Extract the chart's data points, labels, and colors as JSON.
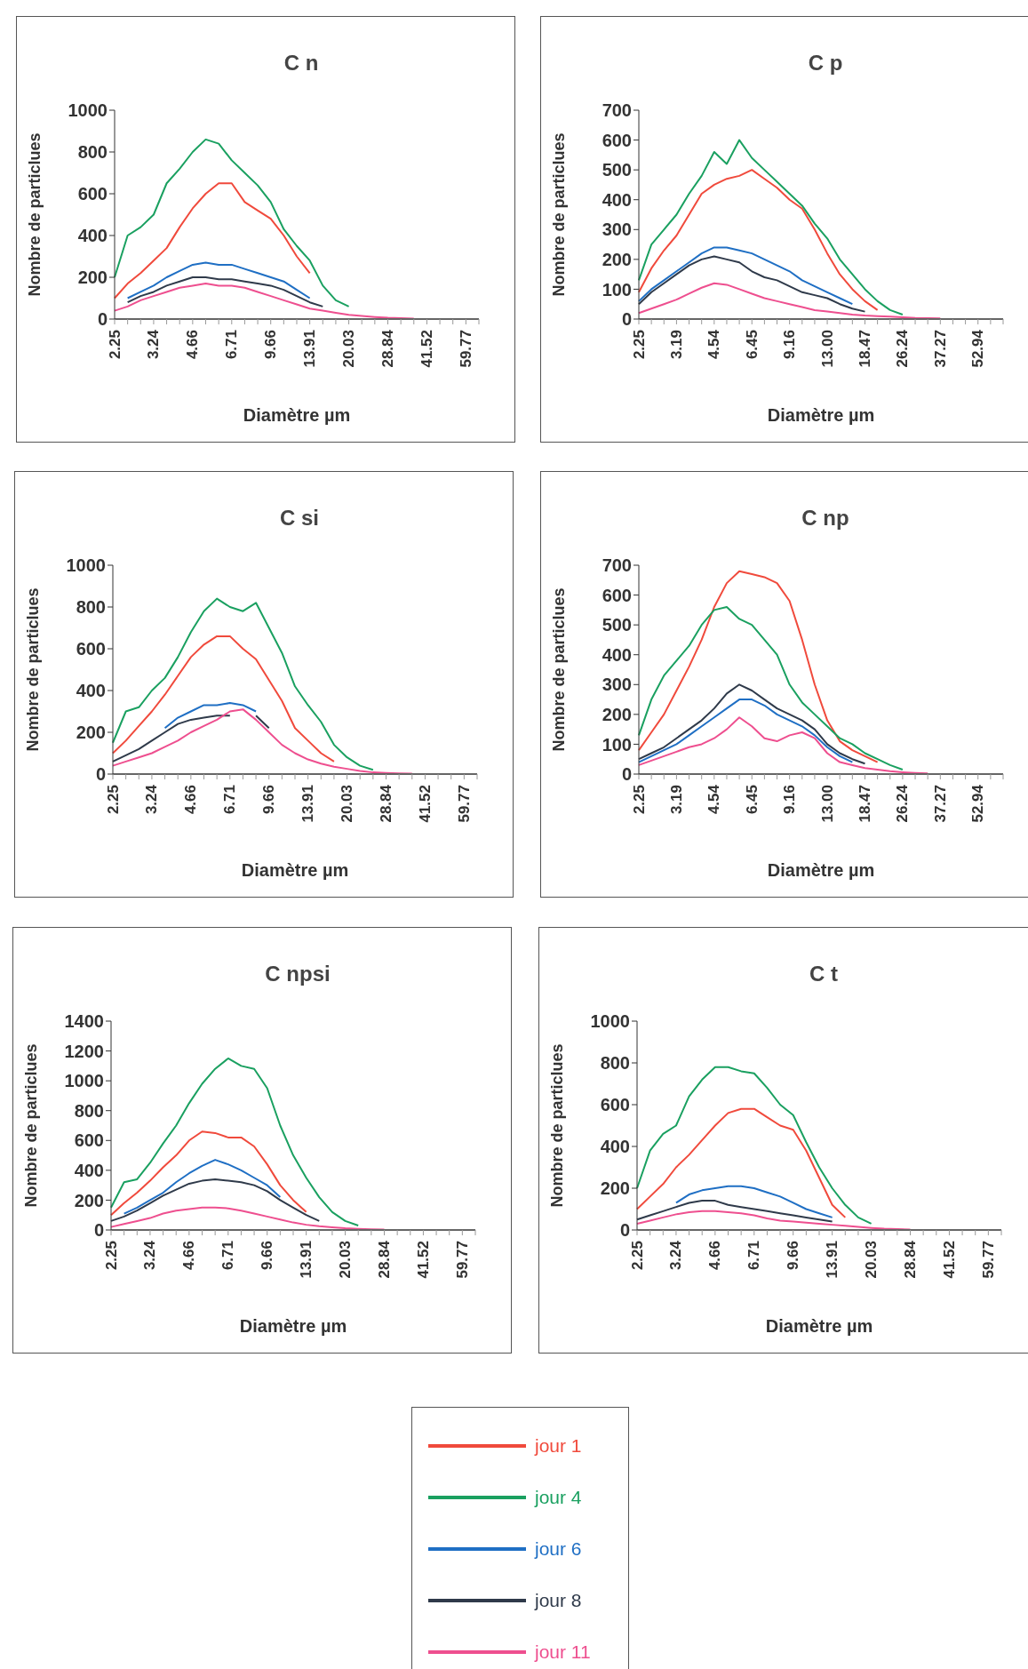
{
  "chart_data": [
    {
      "type": "line",
      "title": "C n",
      "xlabel": "Diamètre  µm",
      "ylabel": "Nombre de particlues",
      "ylim": [
        0,
        1000
      ],
      "yticks": [
        0,
        200,
        400,
        600,
        800,
        1000
      ],
      "categories": [
        "2.25",
        null,
        null,
        "3.24",
        null,
        null,
        "4.66",
        null,
        null,
        "6.71",
        null,
        null,
        "9.66",
        null,
        null,
        "13.91",
        null,
        null,
        "20.03",
        null,
        null,
        "28.84",
        null,
        null,
        "41.52",
        null,
        null,
        "59.77",
        null
      ],
      "series": [
        {
          "color": "#f04a3c",
          "values": [
            100,
            170,
            220,
            280,
            340,
            440,
            530,
            600,
            650,
            650,
            560,
            520,
            480,
            400,
            300,
            220,
            null,
            null,
            null,
            null,
            null,
            null,
            null,
            null,
            null,
            null,
            null,
            null,
            null
          ]
        },
        {
          "color": "#1aa060",
          "values": [
            200,
            400,
            440,
            500,
            650,
            720,
            800,
            860,
            840,
            760,
            700,
            640,
            560,
            430,
            350,
            280,
            160,
            90,
            60,
            null,
            null,
            null,
            null,
            null,
            null,
            null,
            null,
            null,
            null
          ]
        },
        {
          "color": "#1f6fc4",
          "values": [
            null,
            100,
            130,
            160,
            200,
            230,
            260,
            270,
            260,
            260,
            240,
            220,
            200,
            180,
            140,
            100,
            null,
            null,
            null,
            null,
            null,
            null,
            null,
            null,
            null,
            null,
            null,
            null,
            null
          ]
        },
        {
          "color": "#2f3a4a",
          "values": [
            null,
            80,
            110,
            130,
            160,
            180,
            200,
            200,
            190,
            190,
            180,
            170,
            160,
            140,
            110,
            80,
            60,
            null,
            null,
            null,
            null,
            null,
            null,
            null,
            null,
            null,
            null,
            null,
            null
          ]
        },
        {
          "color": "#ee4f8f",
          "values": [
            40,
            60,
            90,
            110,
            130,
            150,
            160,
            170,
            160,
            160,
            150,
            130,
            110,
            90,
            70,
            50,
            40,
            30,
            20,
            15,
            10,
            6,
            4,
            2,
            null,
            null,
            null,
            null,
            null
          ]
        }
      ]
    },
    {
      "type": "line",
      "title": "C p",
      "xlabel": "Diamètre  µm",
      "ylabel": "Nombre de particlues",
      "ylim": [
        0,
        700
      ],
      "yticks": [
        0,
        100,
        200,
        300,
        400,
        500,
        600,
        700
      ],
      "categories": [
        "2.25",
        null,
        null,
        "3.19",
        null,
        null,
        "4.54",
        null,
        null,
        "6.45",
        null,
        null,
        "9.16",
        null,
        null,
        "13.00",
        null,
        null,
        "18.47",
        null,
        null,
        "26.24",
        null,
        null,
        "37.27",
        null,
        null,
        "52.94",
        null,
        null
      ],
      "series": [
        {
          "color": "#f04a3c",
          "values": [
            90,
            170,
            230,
            280,
            350,
            420,
            450,
            470,
            480,
            500,
            470,
            440,
            400,
            370,
            300,
            220,
            150,
            100,
            60,
            30,
            null,
            null,
            null,
            null,
            null,
            null,
            null,
            null,
            null,
            null
          ]
        },
        {
          "color": "#1aa060",
          "values": [
            130,
            250,
            300,
            350,
            420,
            480,
            560,
            520,
            600,
            540,
            500,
            460,
            420,
            380,
            320,
            270,
            200,
            150,
            100,
            60,
            30,
            15,
            null,
            null,
            null,
            null,
            null,
            null,
            null,
            null
          ]
        },
        {
          "color": "#1f6fc4",
          "values": [
            60,
            100,
            130,
            160,
            190,
            220,
            240,
            240,
            230,
            220,
            200,
            180,
            160,
            130,
            110,
            90,
            70,
            50,
            null,
            null,
            null,
            null,
            null,
            null,
            null,
            null,
            null,
            null,
            null,
            null
          ]
        },
        {
          "color": "#2f3a4a",
          "values": [
            50,
            90,
            120,
            150,
            180,
            200,
            210,
            200,
            190,
            160,
            140,
            130,
            110,
            90,
            80,
            70,
            50,
            35,
            25,
            null,
            null,
            null,
            null,
            null,
            null,
            null,
            null,
            null,
            null,
            null
          ]
        },
        {
          "color": "#ee4f8f",
          "values": [
            20,
            35,
            50,
            65,
            85,
            105,
            120,
            115,
            100,
            85,
            70,
            60,
            50,
            40,
            30,
            25,
            20,
            15,
            12,
            10,
            8,
            6,
            4,
            3,
            2,
            null,
            null,
            null,
            null,
            null
          ]
        }
      ]
    },
    {
      "type": "line",
      "title": "C si",
      "xlabel": "Diamètre  µm",
      "ylabel": "Nombre de particlues",
      "ylim": [
        0,
        1000
      ],
      "yticks": [
        0,
        200,
        400,
        600,
        800,
        1000
      ],
      "categories": [
        "2.25",
        null,
        null,
        "3.24",
        null,
        null,
        "4.66",
        null,
        null,
        "6.71",
        null,
        null,
        "9.66",
        null,
        null,
        "13.91",
        null,
        null,
        "20.03",
        null,
        null,
        "28.84",
        null,
        null,
        "41.52",
        null,
        null,
        "59.77",
        null
      ],
      "series": [
        {
          "color": "#f04a3c",
          "values": [
            100,
            160,
            230,
            300,
            380,
            470,
            560,
            620,
            660,
            660,
            600,
            550,
            450,
            350,
            220,
            160,
            100,
            60,
            null,
            null,
            null,
            null,
            null,
            null,
            null,
            null,
            null,
            null,
            null
          ]
        },
        {
          "color": "#1aa060",
          "values": [
            150,
            300,
            320,
            400,
            460,
            560,
            680,
            780,
            840,
            800,
            780,
            820,
            700,
            580,
            420,
            330,
            250,
            140,
            80,
            40,
            20,
            null,
            null,
            null,
            null,
            null,
            null,
            null,
            null
          ]
        },
        {
          "color": "#1f6fc4",
          "values": [
            null,
            null,
            null,
            null,
            220,
            270,
            300,
            330,
            330,
            340,
            330,
            300,
            null,
            null,
            null,
            null,
            null,
            null,
            null,
            null,
            null,
            null,
            null,
            null,
            null,
            null,
            null,
            null,
            null
          ]
        },
        {
          "color": "#2f3a4a",
          "values": [
            60,
            90,
            120,
            160,
            200,
            240,
            260,
            270,
            280,
            280,
            null,
            280,
            220,
            null,
            null,
            null,
            null,
            null,
            null,
            null,
            null,
            null,
            null,
            null,
            null,
            null,
            null,
            null,
            null
          ]
        },
        {
          "color": "#ee4f8f",
          "values": [
            40,
            60,
            80,
            100,
            130,
            160,
            200,
            230,
            260,
            300,
            310,
            260,
            200,
            140,
            100,
            70,
            50,
            35,
            25,
            15,
            8,
            5,
            3,
            2,
            null,
            null,
            null,
            null,
            null
          ]
        }
      ]
    },
    {
      "type": "line",
      "title": "C np",
      "xlabel": "Diamètre  µm",
      "ylabel": "Nombre de particlues",
      "ylim": [
        0,
        700
      ],
      "yticks": [
        0,
        100,
        200,
        300,
        400,
        500,
        600,
        700
      ],
      "categories": [
        "2.25",
        null,
        null,
        "3.19",
        null,
        null,
        "4.54",
        null,
        null,
        "6.45",
        null,
        null,
        "9.16",
        null,
        null,
        "13.00",
        null,
        null,
        "18.47",
        null,
        null,
        "26.24",
        null,
        null,
        "37.27",
        null,
        null,
        "52.94",
        null,
        null
      ],
      "series": [
        {
          "color": "#f04a3c",
          "values": [
            80,
            140,
            200,
            280,
            360,
            450,
            560,
            640,
            680,
            670,
            660,
            640,
            580,
            450,
            300,
            180,
            110,
            80,
            60,
            40,
            null,
            null,
            null,
            null,
            null,
            null,
            null,
            null,
            null,
            null
          ]
        },
        {
          "color": "#1aa060",
          "values": [
            130,
            250,
            330,
            380,
            430,
            500,
            550,
            560,
            520,
            500,
            450,
            400,
            300,
            240,
            200,
            160,
            120,
            100,
            70,
            50,
            30,
            15,
            null,
            null,
            null,
            null,
            null,
            null,
            null,
            null
          ]
        },
        {
          "color": "#1f6fc4",
          "values": [
            40,
            60,
            80,
            100,
            130,
            160,
            190,
            220,
            250,
            250,
            230,
            200,
            180,
            160,
            130,
            90,
            60,
            40,
            null,
            null,
            null,
            null,
            null,
            null,
            null,
            null,
            null,
            null,
            null,
            null
          ]
        },
        {
          "color": "#2f3a4a",
          "values": [
            50,
            70,
            90,
            120,
            150,
            180,
            220,
            270,
            300,
            280,
            250,
            220,
            200,
            180,
            150,
            100,
            70,
            50,
            35,
            null,
            null,
            null,
            null,
            null,
            null,
            null,
            null,
            null,
            null,
            null
          ]
        },
        {
          "color": "#ee4f8f",
          "values": [
            30,
            45,
            60,
            75,
            90,
            100,
            120,
            150,
            190,
            160,
            120,
            110,
            130,
            140,
            120,
            70,
            40,
            30,
            20,
            15,
            10,
            6,
            4,
            2,
            null,
            null,
            null,
            null,
            null,
            null
          ]
        }
      ]
    },
    {
      "type": "line",
      "title": "C npsi",
      "xlabel": "Diamètre  µm",
      "ylabel": "Nombre de particlues",
      "ylim": [
        0,
        1400
      ],
      "yticks": [
        0,
        200,
        400,
        600,
        800,
        1000,
        1200,
        1400
      ],
      "categories": [
        "2.25",
        null,
        null,
        "3.24",
        null,
        null,
        "4.66",
        null,
        null,
        "6.71",
        null,
        null,
        "9.66",
        null,
        null,
        "13.91",
        null,
        null,
        "20.03",
        null,
        null,
        "28.84",
        null,
        null,
        "41.52",
        null,
        null,
        "59.77",
        null
      ],
      "series": [
        {
          "color": "#f04a3c",
          "values": [
            100,
            180,
            250,
            330,
            420,
            500,
            600,
            660,
            650,
            620,
            620,
            560,
            440,
            300,
            200,
            120,
            null,
            null,
            null,
            null,
            null,
            null,
            null,
            null,
            null,
            null,
            null,
            null,
            null
          ]
        },
        {
          "color": "#1aa060",
          "values": [
            150,
            320,
            340,
            450,
            580,
            700,
            850,
            980,
            1080,
            1150,
            1100,
            1080,
            950,
            700,
            500,
            350,
            220,
            120,
            60,
            30,
            null,
            null,
            null,
            null,
            null,
            null,
            null,
            null,
            null
          ]
        },
        {
          "color": "#1f6fc4",
          "values": [
            null,
            110,
            150,
            200,
            250,
            320,
            380,
            430,
            470,
            440,
            400,
            350,
            300,
            220,
            null,
            null,
            null,
            null,
            null,
            null,
            null,
            null,
            null,
            null,
            null,
            null,
            null,
            null,
            null
          ]
        },
        {
          "color": "#2f3a4a",
          "values": [
            60,
            90,
            130,
            180,
            230,
            270,
            310,
            330,
            340,
            330,
            320,
            300,
            260,
            200,
            150,
            100,
            60,
            null,
            null,
            null,
            null,
            null,
            null,
            null,
            null,
            null,
            null,
            null,
            null
          ]
        },
        {
          "color": "#ee4f8f",
          "values": [
            20,
            40,
            60,
            80,
            110,
            130,
            140,
            150,
            150,
            145,
            130,
            110,
            90,
            70,
            50,
            35,
            25,
            18,
            12,
            8,
            5,
            3,
            null,
            null,
            null,
            null,
            null,
            null,
            null
          ]
        }
      ]
    },
    {
      "type": "line",
      "title": "C t",
      "xlabel": "Diamètre  µm",
      "ylabel": "Nombre de particlues",
      "ylim": [
        0,
        1000
      ],
      "yticks": [
        0,
        200,
        400,
        600,
        800,
        1000
      ],
      "legend": "bottom",
      "categories": [
        "2.25",
        null,
        null,
        "3.24",
        null,
        null,
        "4.66",
        null,
        null,
        "6.71",
        null,
        null,
        "9.66",
        null,
        null,
        "13.91",
        null,
        null,
        "20.03",
        null,
        null,
        "28.84",
        null,
        null,
        "41.52",
        null,
        null,
        "59.77",
        null
      ],
      "series": [
        {
          "name": "jour 1",
          "color": "#f04a3c",
          "values": [
            100,
            160,
            220,
            300,
            360,
            430,
            500,
            560,
            580,
            580,
            540,
            500,
            480,
            380,
            250,
            120,
            60,
            null,
            null,
            null,
            null,
            null,
            null,
            null,
            null,
            null,
            null,
            null,
            null
          ]
        },
        {
          "name": "jour 4",
          "color": "#1aa060",
          "values": [
            200,
            380,
            460,
            500,
            640,
            720,
            780,
            780,
            760,
            750,
            680,
            600,
            550,
            420,
            300,
            200,
            120,
            60,
            30,
            null,
            null,
            null,
            null,
            null,
            null,
            null,
            null,
            null,
            null
          ]
        },
        {
          "name": "jour 6",
          "color": "#1f6fc4",
          "values": [
            null,
            null,
            null,
            130,
            170,
            190,
            200,
            210,
            210,
            200,
            180,
            160,
            130,
            100,
            80,
            60,
            null,
            null,
            null,
            null,
            null,
            null,
            null,
            null,
            null,
            null,
            null,
            null,
            null
          ]
        },
        {
          "name": "jour 8",
          "color": "#2f3a4a",
          "values": [
            50,
            70,
            90,
            110,
            130,
            140,
            140,
            120,
            110,
            100,
            90,
            80,
            70,
            60,
            50,
            40,
            null,
            null,
            null,
            null,
            null,
            null,
            null,
            null,
            null,
            null,
            null,
            null,
            null
          ]
        },
        {
          "name": "jour 11",
          "color": "#ee4f8f",
          "values": [
            30,
            45,
            60,
            75,
            85,
            90,
            90,
            85,
            80,
            70,
            55,
            45,
            40,
            35,
            30,
            25,
            20,
            15,
            10,
            6,
            4,
            2,
            null,
            null,
            null,
            null,
            null,
            null,
            null
          ]
        }
      ]
    }
  ]
}
